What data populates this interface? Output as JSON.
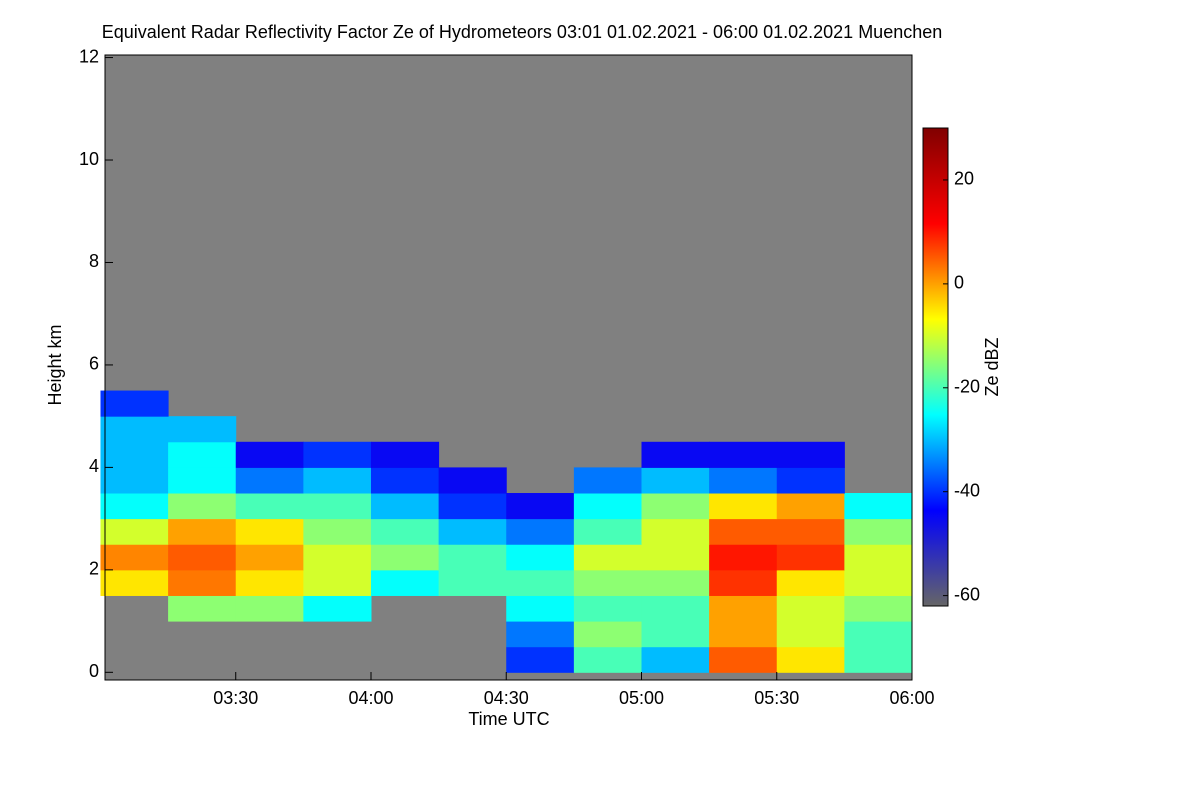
{
  "chart_data": {
    "type": "heatmap",
    "title": "Equivalent Radar Reflectivity Factor Ze of Hydrometeors   03:01 01.02.2021 - 06:00 01.02.2021 Muenchen",
    "x_label": "Time UTC",
    "y_label": "Height km",
    "colorbar_label": "Ze dBZ",
    "xlim": [
      3.0167,
      6.0
    ],
    "xticks": [
      {
        "value": 3.5,
        "label": "03:30"
      },
      {
        "value": 4.0,
        "label": "04:00"
      },
      {
        "value": 4.5,
        "label": "04:30"
      },
      {
        "value": 5.0,
        "label": "05:00"
      },
      {
        "value": 5.5,
        "label": "05:30"
      },
      {
        "value": 6.0,
        "label": "06:00"
      }
    ],
    "ylim": [
      -0.15,
      12.05
    ],
    "yticks": [
      0,
      2,
      4,
      6,
      8,
      10,
      12
    ],
    "zlim": [
      -62,
      30
    ],
    "zticks": [
      -60,
      -40,
      -20,
      0,
      20
    ],
    "colormap": [
      "#666666",
      "#0000ff",
      "#00ffff",
      "#ffff00",
      "#ff0000",
      "#800000"
    ],
    "missing_color": "#808080",
    "x": [
      3.125,
      3.375,
      3.625,
      3.875,
      4.125,
      4.375,
      4.625,
      4.875,
      5.125,
      5.375,
      5.625,
      5.875
    ],
    "y": [
      0.25,
      0.75,
      1.25,
      1.75,
      2.25,
      2.75,
      3.25,
      3.75,
      4.25,
      4.75,
      5.25
    ],
    "z": [
      [
        null,
        null,
        null,
        null,
        null,
        null,
        -40,
        -20,
        -30,
        5,
        -5,
        -20
      ],
      [
        null,
        null,
        null,
        null,
        null,
        null,
        -35,
        -15,
        -20,
        0,
        -10,
        -20
      ],
      [
        null,
        -15,
        -15,
        -25,
        null,
        null,
        -25,
        -20,
        -20,
        0,
        -10,
        -15
      ],
      [
        -5,
        3,
        -5,
        -10,
        -25,
        -20,
        -20,
        -15,
        -15,
        8,
        -5,
        -10
      ],
      [
        2,
        5,
        0,
        -10,
        -15,
        -20,
        -25,
        -10,
        -10,
        10,
        8,
        -10
      ],
      [
        -10,
        0,
        -5,
        -15,
        -20,
        -30,
        -35,
        -20,
        -10,
        5,
        5,
        -15
      ],
      [
        -25,
        -15,
        -20,
        -20,
        -30,
        -40,
        -45,
        -25,
        -15,
        -5,
        0,
        -25
      ],
      [
        -30,
        -25,
        -35,
        -30,
        -40,
        -45,
        null,
        -35,
        -30,
        -35,
        -40,
        null
      ],
      [
        -30,
        -25,
        -45,
        -40,
        -45,
        null,
        null,
        null,
        -45,
        -45,
        -45,
        null
      ],
      [
        -30,
        -30,
        null,
        null,
        null,
        null,
        null,
        null,
        null,
        null,
        null,
        null
      ],
      [
        -40,
        null,
        null,
        null,
        null,
        null,
        null,
        null,
        null,
        null,
        null,
        null
      ]
    ]
  }
}
